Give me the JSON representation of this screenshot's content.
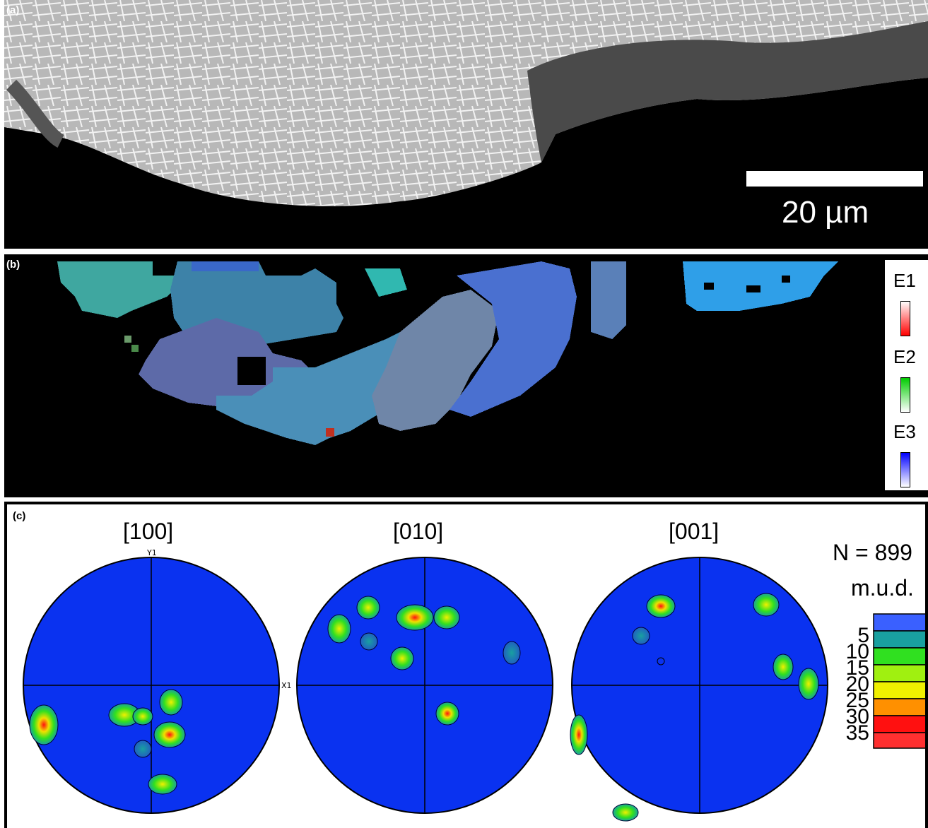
{
  "panel_a": {
    "label": "(a)",
    "scale_bar_text": "20 µm"
  },
  "panel_b": {
    "label": "(b)",
    "legend": [
      {
        "name": "E1",
        "color": "#ff0000"
      },
      {
        "name": "E2",
        "color": "#00cc00"
      },
      {
        "name": "E3",
        "color": "#0000ff"
      }
    ]
  },
  "panel_c": {
    "label": "(c)",
    "pole_figures": [
      {
        "title": "[100]",
        "axis_top": "Y1",
        "axis_right": "X1"
      },
      {
        "title": "[010]"
      },
      {
        "title": "[001]"
      }
    ],
    "n_text": "N = 899",
    "colorbar_label": "m.u.d.",
    "colorbar_ticks": [
      "5",
      "10",
      "15",
      "20",
      "25",
      "30",
      "35"
    ],
    "colorbar_colors": [
      "#3a60ff",
      "#19a0a0",
      "#30e020",
      "#a0f010",
      "#f0f000",
      "#ff9000",
      "#ff1010"
    ]
  }
}
